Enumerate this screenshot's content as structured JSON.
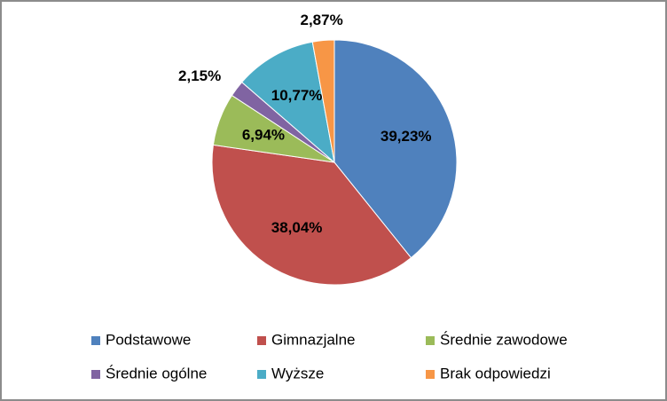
{
  "chart_data": {
    "type": "pie",
    "categories": [
      "Podstawowe",
      "Gimnazjalne",
      "Średnie zawodowe",
      "Średnie ogólne",
      "Wyższe",
      "Brak odpowiedzi"
    ],
    "values": [
      39.23,
      38.04,
      6.94,
      2.15,
      10.77,
      2.87
    ],
    "value_labels": [
      "39,23%",
      "38,04%",
      "6,94%",
      "2,15%",
      "10,77%",
      "2,87%"
    ],
    "colors": [
      "#4f81bd",
      "#c0504d",
      "#9bbb59",
      "#8064a2",
      "#4bacc6",
      "#f79646"
    ],
    "legend": "bottom"
  }
}
